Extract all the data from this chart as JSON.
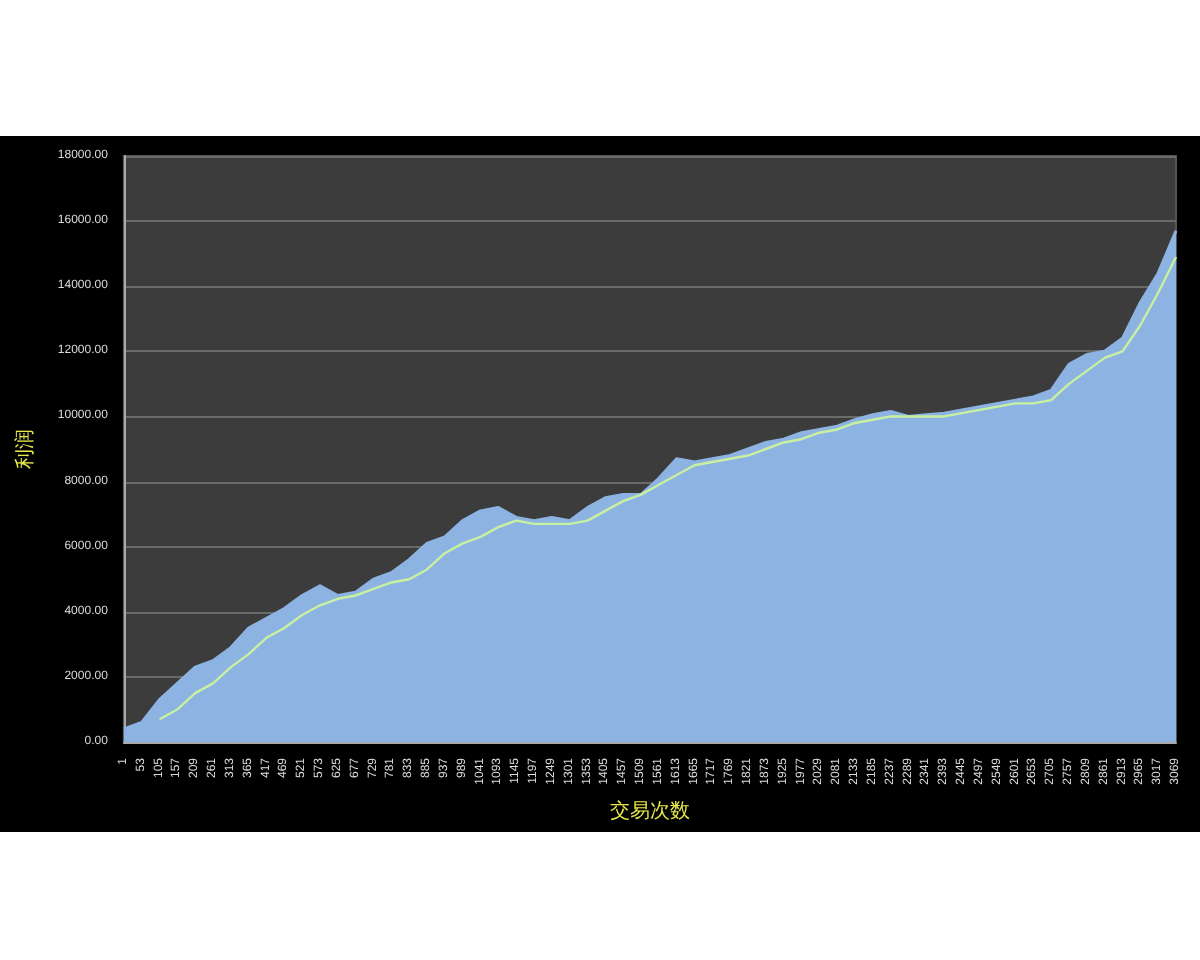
{
  "chart_data": {
    "type": "area",
    "xlabel": "交易次数",
    "ylabel": "利润",
    "categories": [
      "1",
      "53",
      "105",
      "157",
      "209",
      "261",
      "313",
      "365",
      "417",
      "469",
      "521",
      "573",
      "625",
      "677",
      "729",
      "781",
      "833",
      "885",
      "937",
      "989",
      "1041",
      "1093",
      "1145",
      "1197",
      "1249",
      "1301",
      "1353",
      "1405",
      "1457",
      "1509",
      "1561",
      "1613",
      "1665",
      "1717",
      "1769",
      "1821",
      "1873",
      "1925",
      "1977",
      "2029",
      "2081",
      "2133",
      "2185",
      "2237",
      "2289",
      "2341",
      "2393",
      "2445",
      "2497",
      "2549",
      "2601",
      "2653",
      "2705",
      "2757",
      "2809",
      "2861",
      "2913",
      "2965",
      "3017",
      "3069"
    ],
    "series": [
      {
        "color": "#8db3e2",
        "values": [
          400,
          600,
          1300,
          1800,
          2300,
          2500,
          2900,
          3500,
          3800,
          4100,
          4500,
          4800,
          4500,
          4600,
          5000,
          5200,
          5600,
          6100,
          6300,
          6800,
          7100,
          7200,
          6900,
          6800,
          6900,
          6800,
          7200,
          7500,
          7600,
          7600,
          8100,
          8700,
          8600,
          8700,
          8800,
          9000,
          9200,
          9300,
          9500,
          9600,
          9700,
          9900,
          10050,
          10150,
          10000,
          10050,
          10100,
          10200,
          10300,
          10400,
          10500,
          10600,
          10800,
          11600,
          11900,
          12000,
          12400,
          13500,
          14400,
          15700
        ]
      },
      {
        "type": "line",
        "color": "#c8f0a0",
        "values": [
          null,
          null,
          700,
          1000,
          1500,
          1800,
          2300,
          2700,
          3200,
          3500,
          3900,
          4200,
          4400,
          4500,
          4700,
          4900,
          5000,
          5300,
          5800,
          6100,
          6300,
          6600,
          6800,
          6700,
          6700,
          6700,
          6800,
          7100,
          7400,
          7600,
          7900,
          8200,
          8500,
          8600,
          8700,
          8800,
          9000,
          9200,
          9300,
          9500,
          9600,
          9800,
          9900,
          10000,
          10000,
          10000,
          10000,
          10100,
          10200,
          10300,
          10400,
          10400,
          10500,
          11000,
          11400,
          11800,
          12000,
          12800,
          13800,
          14900
        ]
      }
    ],
    "ylim": [
      0,
      18000
    ],
    "yticks": [
      {
        "value": 0,
        "label": "0.00"
      },
      {
        "value": 2000,
        "label": "2000.00"
      },
      {
        "value": 4000,
        "label": "4000.00"
      },
      {
        "value": 6000,
        "label": "6000.00"
      },
      {
        "value": 8000,
        "label": "8000.00"
      },
      {
        "value": 10000,
        "label": "10000.00"
      },
      {
        "value": 12000,
        "label": "12000.00"
      },
      {
        "value": 14000,
        "label": "14000.00"
      },
      {
        "value": 16000,
        "label": "16000.00"
      },
      {
        "value": 18000,
        "label": "18000.00"
      }
    ],
    "grid": "y",
    "marker": "none",
    "line_style": "solid"
  }
}
